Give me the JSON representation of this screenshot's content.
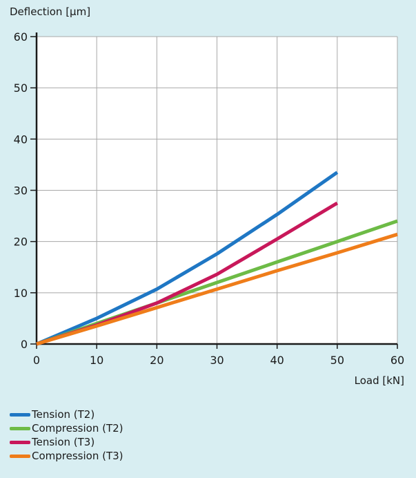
{
  "chart_data": {
    "type": "line",
    "xlabel": "Load [kN]",
    "ylabel": "Deflection [µm]",
    "xlim": [
      0,
      60
    ],
    "ylim": [
      0,
      60
    ],
    "xticks": [
      0,
      10,
      20,
      30,
      40,
      50,
      60
    ],
    "yticks": [
      0,
      10,
      20,
      30,
      40,
      50,
      60
    ],
    "grid": true,
    "legend_position": "bottom-left",
    "series": [
      {
        "name": "Tension (T2)",
        "color": "#1f77c4",
        "x": [
          0,
          10,
          20,
          30,
          40,
          50
        ],
        "y": [
          0,
          5,
          10.7,
          17.6,
          25.3,
          33.5
        ]
      },
      {
        "name": "Compression (T2)",
        "color": "#6dbb46",
        "x": [
          0,
          10,
          20,
          30,
          40,
          50,
          60
        ],
        "y": [
          0,
          4,
          8,
          12,
          16,
          20,
          24
        ]
      },
      {
        "name": "Tension (T3)",
        "color": "#c8185a",
        "x": [
          0,
          10,
          20,
          30,
          40,
          50
        ],
        "y": [
          0,
          3.7,
          8,
          13.6,
          20.5,
          27.5
        ]
      },
      {
        "name": "Compression (T3)",
        "color": "#ef7d1a",
        "x": [
          0,
          10,
          20,
          30,
          40,
          50,
          60
        ],
        "y": [
          0,
          3.5,
          7.1,
          10.7,
          14.3,
          17.8,
          21.4
        ]
      }
    ]
  }
}
